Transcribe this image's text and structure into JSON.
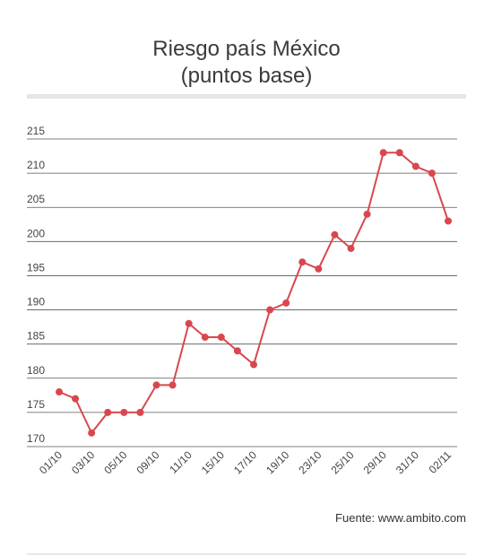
{
  "title": {
    "line1": "Riesgo país México",
    "line2": "(puntos base)"
  },
  "source": "Fuente: www.ambito.com",
  "colors": {
    "series": "#d9474e",
    "grid": "#555555",
    "rule": "#e6e6e6"
  },
  "chart_data": {
    "type": "line",
    "title": "Riesgo país México (puntos base)",
    "xlabel": "",
    "ylabel": "",
    "ylim": [
      170,
      215
    ],
    "yticks": [
      170,
      175,
      180,
      185,
      190,
      195,
      200,
      205,
      210,
      215
    ],
    "grid": true,
    "legend": "none",
    "x_tick_labels": [
      "01/10",
      "03/10",
      "05/10",
      "09/10",
      "11/10",
      "15/10",
      "17/10",
      "19/10",
      "23/10",
      "25/10",
      "29/10",
      "31/10",
      "02/11"
    ],
    "series": [
      {
        "values": [
          178,
          177,
          172,
          175,
          175,
          175,
          179,
          179,
          188,
          186,
          186,
          184,
          182,
          190,
          191,
          197,
          196,
          201,
          199,
          204,
          213,
          213,
          211,
          210,
          203
        ]
      }
    ]
  }
}
